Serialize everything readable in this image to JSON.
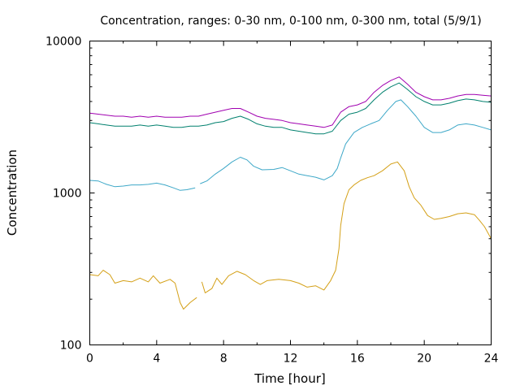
{
  "chart_data": {
    "type": "line",
    "title": "Concentration, ranges: 0-30 nm, 0-100 nm, 0-300 nm, total (5/9/1)",
    "xlabel": "Time [hour]",
    "ylabel": "Concentration",
    "xlim": [
      0,
      24
    ],
    "ylim": [
      100,
      10000
    ],
    "yscale": "log",
    "grid": false,
    "x_ticks": [
      0,
      4,
      8,
      12,
      16,
      20,
      24
    ],
    "x_tick_labels": [
      "0",
      "4",
      "8",
      "12",
      "16",
      "20",
      "24"
    ],
    "y_ticks": [
      100,
      1000,
      10000
    ],
    "y_tick_labels": [
      "100",
      "1000",
      "10000"
    ],
    "series": [
      {
        "color": "#d4a017",
        "points": [
          [
            0,
            290
          ],
          [
            0.5,
            285
          ],
          [
            0.8,
            310
          ],
          [
            1.2,
            290
          ],
          [
            1.5,
            255
          ],
          [
            2,
            265
          ],
          [
            2.5,
            260
          ],
          [
            3,
            275
          ],
          [
            3.5,
            260
          ],
          [
            3.8,
            285
          ],
          [
            4.2,
            255
          ],
          [
            4.8,
            270
          ],
          [
            5.1,
            255
          ],
          [
            5.4,
            190
          ],
          [
            5.6,
            172
          ],
          [
            6,
            190
          ],
          [
            6.4,
            205
          ],
          [
            6.6,
            null
          ],
          [
            6.7,
            260
          ],
          [
            6.9,
            220
          ],
          [
            7.3,
            235
          ],
          [
            7.6,
            275
          ],
          [
            7.9,
            250
          ],
          [
            8.3,
            285
          ],
          [
            8.8,
            305
          ],
          [
            9.3,
            290
          ],
          [
            9.8,
            265
          ],
          [
            10.2,
            250
          ],
          [
            10.6,
            265
          ],
          [
            11.3,
            270
          ],
          [
            12,
            265
          ],
          [
            12.5,
            255
          ],
          [
            13,
            240
          ],
          [
            13.5,
            245
          ],
          [
            14,
            230
          ],
          [
            14.4,
            265
          ],
          [
            14.7,
            310
          ],
          [
            14.9,
            430
          ],
          [
            15,
            610
          ],
          [
            15.2,
            850
          ],
          [
            15.5,
            1050
          ],
          [
            15.8,
            1130
          ],
          [
            16.2,
            1210
          ],
          [
            16.6,
            1260
          ],
          [
            17,
            1300
          ],
          [
            17.5,
            1400
          ],
          [
            18,
            1550
          ],
          [
            18.4,
            1600
          ],
          [
            18.8,
            1400
          ],
          [
            19.1,
            1100
          ],
          [
            19.4,
            930
          ],
          [
            19.8,
            830
          ],
          [
            20.2,
            710
          ],
          [
            20.6,
            670
          ],
          [
            21,
            680
          ],
          [
            21.5,
            700
          ],
          [
            22,
            730
          ],
          [
            22.5,
            740
          ],
          [
            23,
            720
          ],
          [
            23.3,
            660
          ],
          [
            23.6,
            600
          ],
          [
            24,
            500
          ]
        ]
      },
      {
        "color": "#3ea8c8",
        "points": [
          [
            0,
            1210
          ],
          [
            0.5,
            1200
          ],
          [
            1,
            1140
          ],
          [
            1.5,
            1100
          ],
          [
            2,
            1110
          ],
          [
            2.5,
            1130
          ],
          [
            3,
            1130
          ],
          [
            3.5,
            1140
          ],
          [
            4,
            1160
          ],
          [
            4.5,
            1130
          ],
          [
            5,
            1080
          ],
          [
            5.4,
            1040
          ],
          [
            5.8,
            1050
          ],
          [
            6.3,
            1080
          ],
          [
            6.5,
            null
          ],
          [
            6.6,
            1150
          ],
          [
            7,
            1200
          ],
          [
            7.5,
            1330
          ],
          [
            8,
            1450
          ],
          [
            8.5,
            1600
          ],
          [
            9,
            1720
          ],
          [
            9.4,
            1650
          ],
          [
            9.8,
            1500
          ],
          [
            10.3,
            1420
          ],
          [
            11,
            1430
          ],
          [
            11.5,
            1470
          ],
          [
            12,
            1400
          ],
          [
            12.5,
            1330
          ],
          [
            13,
            1300
          ],
          [
            13.5,
            1270
          ],
          [
            14,
            1220
          ],
          [
            14.5,
            1300
          ],
          [
            14.8,
            1450
          ],
          [
            15,
            1700
          ],
          [
            15.3,
            2100
          ],
          [
            15.8,
            2500
          ],
          [
            16.3,
            2700
          ],
          [
            16.8,
            2850
          ],
          [
            17.3,
            3000
          ],
          [
            17.8,
            3500
          ],
          [
            18.3,
            4000
          ],
          [
            18.6,
            4100
          ],
          [
            19,
            3700
          ],
          [
            19.5,
            3200
          ],
          [
            20,
            2700
          ],
          [
            20.5,
            2500
          ],
          [
            21,
            2500
          ],
          [
            21.5,
            2600
          ],
          [
            22,
            2800
          ],
          [
            22.5,
            2850
          ],
          [
            23,
            2800
          ],
          [
            23.5,
            2700
          ],
          [
            24,
            2600
          ]
        ]
      },
      {
        "color": "#00806e",
        "points": [
          [
            0,
            2900
          ],
          [
            0.5,
            2850
          ],
          [
            1,
            2800
          ],
          [
            1.5,
            2750
          ],
          [
            2,
            2750
          ],
          [
            2.5,
            2750
          ],
          [
            3,
            2800
          ],
          [
            3.5,
            2750
          ],
          [
            4,
            2800
          ],
          [
            4.5,
            2750
          ],
          [
            5,
            2700
          ],
          [
            5.5,
            2700
          ],
          [
            6,
            2750
          ],
          [
            6.5,
            2750
          ],
          [
            7,
            2800
          ],
          [
            7.5,
            2900
          ],
          [
            8,
            2950
          ],
          [
            8.5,
            3100
          ],
          [
            9,
            3200
          ],
          [
            9.5,
            3050
          ],
          [
            10,
            2850
          ],
          [
            10.5,
            2750
          ],
          [
            11,
            2700
          ],
          [
            11.5,
            2700
          ],
          [
            12,
            2600
          ],
          [
            12.5,
            2550
          ],
          [
            13,
            2500
          ],
          [
            13.5,
            2450
          ],
          [
            14,
            2450
          ],
          [
            14.5,
            2550
          ],
          [
            15,
            3000
          ],
          [
            15.5,
            3300
          ],
          [
            16,
            3400
          ],
          [
            16.5,
            3600
          ],
          [
            17,
            4100
          ],
          [
            17.5,
            4600
          ],
          [
            18,
            5000
          ],
          [
            18.5,
            5300
          ],
          [
            19,
            4800
          ],
          [
            19.5,
            4300
          ],
          [
            20,
            4000
          ],
          [
            20.5,
            3800
          ],
          [
            21,
            3800
          ],
          [
            21.5,
            3900
          ],
          [
            22,
            4050
          ],
          [
            22.5,
            4150
          ],
          [
            23,
            4100
          ],
          [
            23.5,
            4000
          ],
          [
            24,
            3950
          ]
        ]
      },
      {
        "color": "#a000b0",
        "points": [
          [
            0,
            3350
          ],
          [
            0.5,
            3300
          ],
          [
            1,
            3250
          ],
          [
            1.5,
            3200
          ],
          [
            2,
            3200
          ],
          [
            2.5,
            3150
          ],
          [
            3,
            3200
          ],
          [
            3.5,
            3150
          ],
          [
            4,
            3200
          ],
          [
            4.5,
            3150
          ],
          [
            5,
            3150
          ],
          [
            5.5,
            3150
          ],
          [
            6,
            3200
          ],
          [
            6.5,
            3200
          ],
          [
            7,
            3300
          ],
          [
            7.5,
            3400
          ],
          [
            8,
            3500
          ],
          [
            8.5,
            3600
          ],
          [
            9,
            3600
          ],
          [
            9.5,
            3400
          ],
          [
            10,
            3200
          ],
          [
            10.5,
            3100
          ],
          [
            11,
            3050
          ],
          [
            11.5,
            3000
          ],
          [
            12,
            2900
          ],
          [
            12.5,
            2850
          ],
          [
            13,
            2800
          ],
          [
            13.5,
            2750
          ],
          [
            14,
            2700
          ],
          [
            14.5,
            2800
          ],
          [
            15,
            3400
          ],
          [
            15.5,
            3700
          ],
          [
            16,
            3800
          ],
          [
            16.5,
            4000
          ],
          [
            17,
            4600
          ],
          [
            17.5,
            5100
          ],
          [
            18,
            5500
          ],
          [
            18.5,
            5800
          ],
          [
            19,
            5200
          ],
          [
            19.5,
            4600
          ],
          [
            20,
            4300
          ],
          [
            20.5,
            4100
          ],
          [
            21,
            4100
          ],
          [
            21.5,
            4200
          ],
          [
            22,
            4350
          ],
          [
            22.5,
            4450
          ],
          [
            23,
            4450
          ],
          [
            23.5,
            4400
          ],
          [
            24,
            4350
          ]
        ]
      }
    ]
  }
}
